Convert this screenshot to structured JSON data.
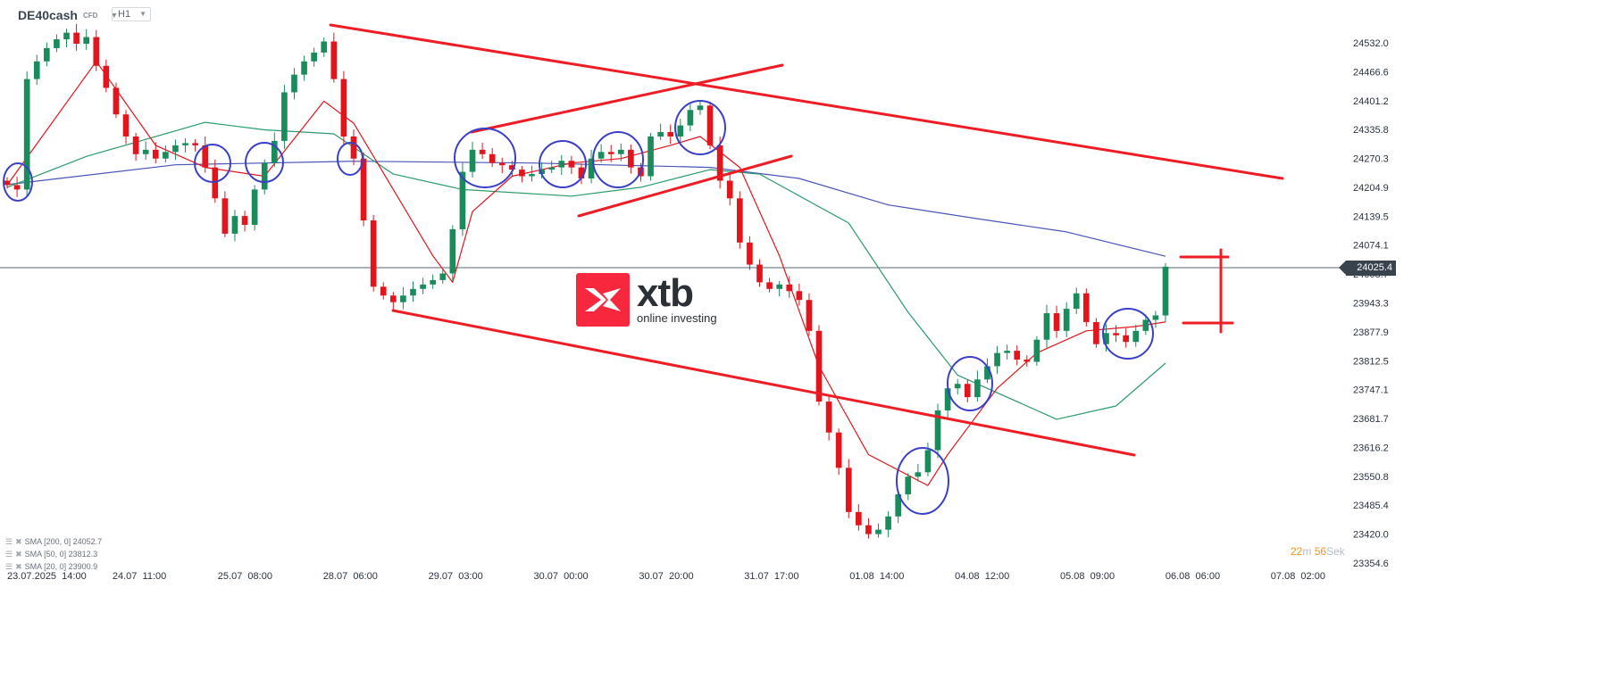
{
  "header": {
    "symbol": "DE40cash",
    "type": "CFD",
    "timeframe": "H1"
  },
  "legend": [
    {
      "label": "SMA [200,  0] 24052.7"
    },
    {
      "label": "SMA [50,  0] 23812.3"
    },
    {
      "label": "SMA [20,  0] 23900.9"
    }
  ],
  "timer": {
    "minutes": "22",
    "m": "m",
    "seconds": "56",
    "s": "Sek"
  },
  "logo": {
    "brand": "xtb",
    "tagline": "online investing"
  },
  "current_price": "24025.4",
  "colors": {
    "up": "#1a8c5c",
    "down": "#e3141c",
    "sma200": "#4a55b8",
    "sma50": "#2a9a6a",
    "sma20": "#e3141c",
    "drawings": "#ee1c25",
    "circles": "#3a3fc8",
    "accent": "#f7283e"
  },
  "chart_data": {
    "type": "candlestick",
    "title": "DE40cash",
    "ylim": [
      23354.6,
      24532.0
    ],
    "y_ticks": [
      "24532.0",
      "24466.6",
      "24401.2",
      "24335.8",
      "24270.3",
      "24204.9",
      "24139.5",
      "24074.1",
      "24008.7",
      "23943.3",
      "23877.9",
      "23812.5",
      "23747.1",
      "23681.7",
      "23616.2",
      "23550.8",
      "23485.4",
      "23420.0",
      "23354.6"
    ],
    "x_ticks": [
      "23.07.2025  14:00",
      "24.07  11:00",
      "25.07  08:00",
      "28.07  06:00",
      "29.07  03:00",
      "30.07  00:00",
      "30.07  20:00",
      "31.07  17:00",
      "01.08  14:00",
      "04.08  12:00",
      "05.08  09:00",
      "06.08  06:00",
      "07.08  02:00"
    ],
    "closes": [
      24210,
      24200,
      24450,
      24490,
      24520,
      24540,
      24555,
      24530,
      24545,
      24480,
      24430,
      24370,
      24320,
      24280,
      24290,
      24270,
      24285,
      24300,
      24305,
      24300,
      24250,
      24180,
      24100,
      24140,
      24120,
      24200,
      24260,
      24310,
      24420,
      24460,
      24490,
      24510,
      24535,
      24450,
      24320,
      24270,
      24130,
      23980,
      23960,
      23945,
      23960,
      23975,
      23985,
      23995,
      24010,
      24110,
      24240,
      24290,
      24280,
      24260,
      24255,
      24245,
      24230,
      24235,
      24245,
      24250,
      24265,
      24250,
      24225,
      24270,
      24285,
      24280,
      24290,
      24250,
      24230,
      24320,
      24330,
      24320,
      24345,
      24380,
      24390,
      24300,
      24220,
      24180,
      24080,
      24030,
      23990,
      23975,
      23985,
      23970,
      23950,
      23880,
      23720,
      23650,
      23570,
      23470,
      23440,
      23420,
      23430,
      23460,
      23510,
      23550,
      23560,
      23610,
      23700,
      23750,
      23760,
      23730,
      23770,
      23800,
      23830,
      23835,
      23815,
      23810,
      23860,
      23920,
      23880,
      23930,
      23965,
      23900,
      23850,
      23875,
      23870,
      23855,
      23880,
      23905,
      23915,
      24025.4
    ],
    "sma": [
      {
        "name": "SMA [200,  0]",
        "points": [
          [
            0,
            24211
          ],
          [
            17,
            24256
          ],
          [
            35,
            24264
          ],
          [
            53,
            24260
          ],
          [
            71,
            24250
          ],
          [
            80,
            24225
          ],
          [
            89,
            24165
          ],
          [
            98,
            24134
          ],
          [
            107,
            24104
          ],
          [
            117,
            24049
          ]
        ]
      },
      {
        "name": "SMA [50,  0]",
        "points": [
          [
            0,
            24205
          ],
          [
            8,
            24275
          ],
          [
            20,
            24352
          ],
          [
            26,
            24335
          ],
          [
            33,
            24326
          ],
          [
            39,
            24235
          ],
          [
            46,
            24200
          ],
          [
            57,
            24185
          ],
          [
            64,
            24205
          ],
          [
            71,
            24245
          ],
          [
            76,
            24235
          ],
          [
            85,
            24124
          ],
          [
            91,
            23922
          ],
          [
            96,
            23780
          ],
          [
            106,
            23680
          ],
          [
            112,
            23710
          ],
          [
            117,
            23807
          ]
        ]
      },
      {
        "name": "SMA [20,  0]",
        "points": [
          [
            0,
            24210
          ],
          [
            9,
            24490
          ],
          [
            15,
            24300
          ],
          [
            20,
            24250
          ],
          [
            26,
            24230
          ],
          [
            32,
            24400
          ],
          [
            35,
            24350
          ],
          [
            43,
            24050
          ],
          [
            45,
            23990
          ],
          [
            47,
            24150
          ],
          [
            51,
            24230
          ],
          [
            57,
            24260
          ],
          [
            62,
            24270
          ],
          [
            67,
            24300
          ],
          [
            70,
            24320
          ],
          [
            74,
            24250
          ],
          [
            78,
            24050
          ],
          [
            82,
            23800
          ],
          [
            87,
            23600
          ],
          [
            93,
            23530
          ],
          [
            95,
            23600
          ],
          [
            100,
            23750
          ],
          [
            104,
            23830
          ],
          [
            109,
            23880
          ],
          [
            114,
            23890
          ],
          [
            117,
            23900
          ]
        ]
      }
    ]
  }
}
